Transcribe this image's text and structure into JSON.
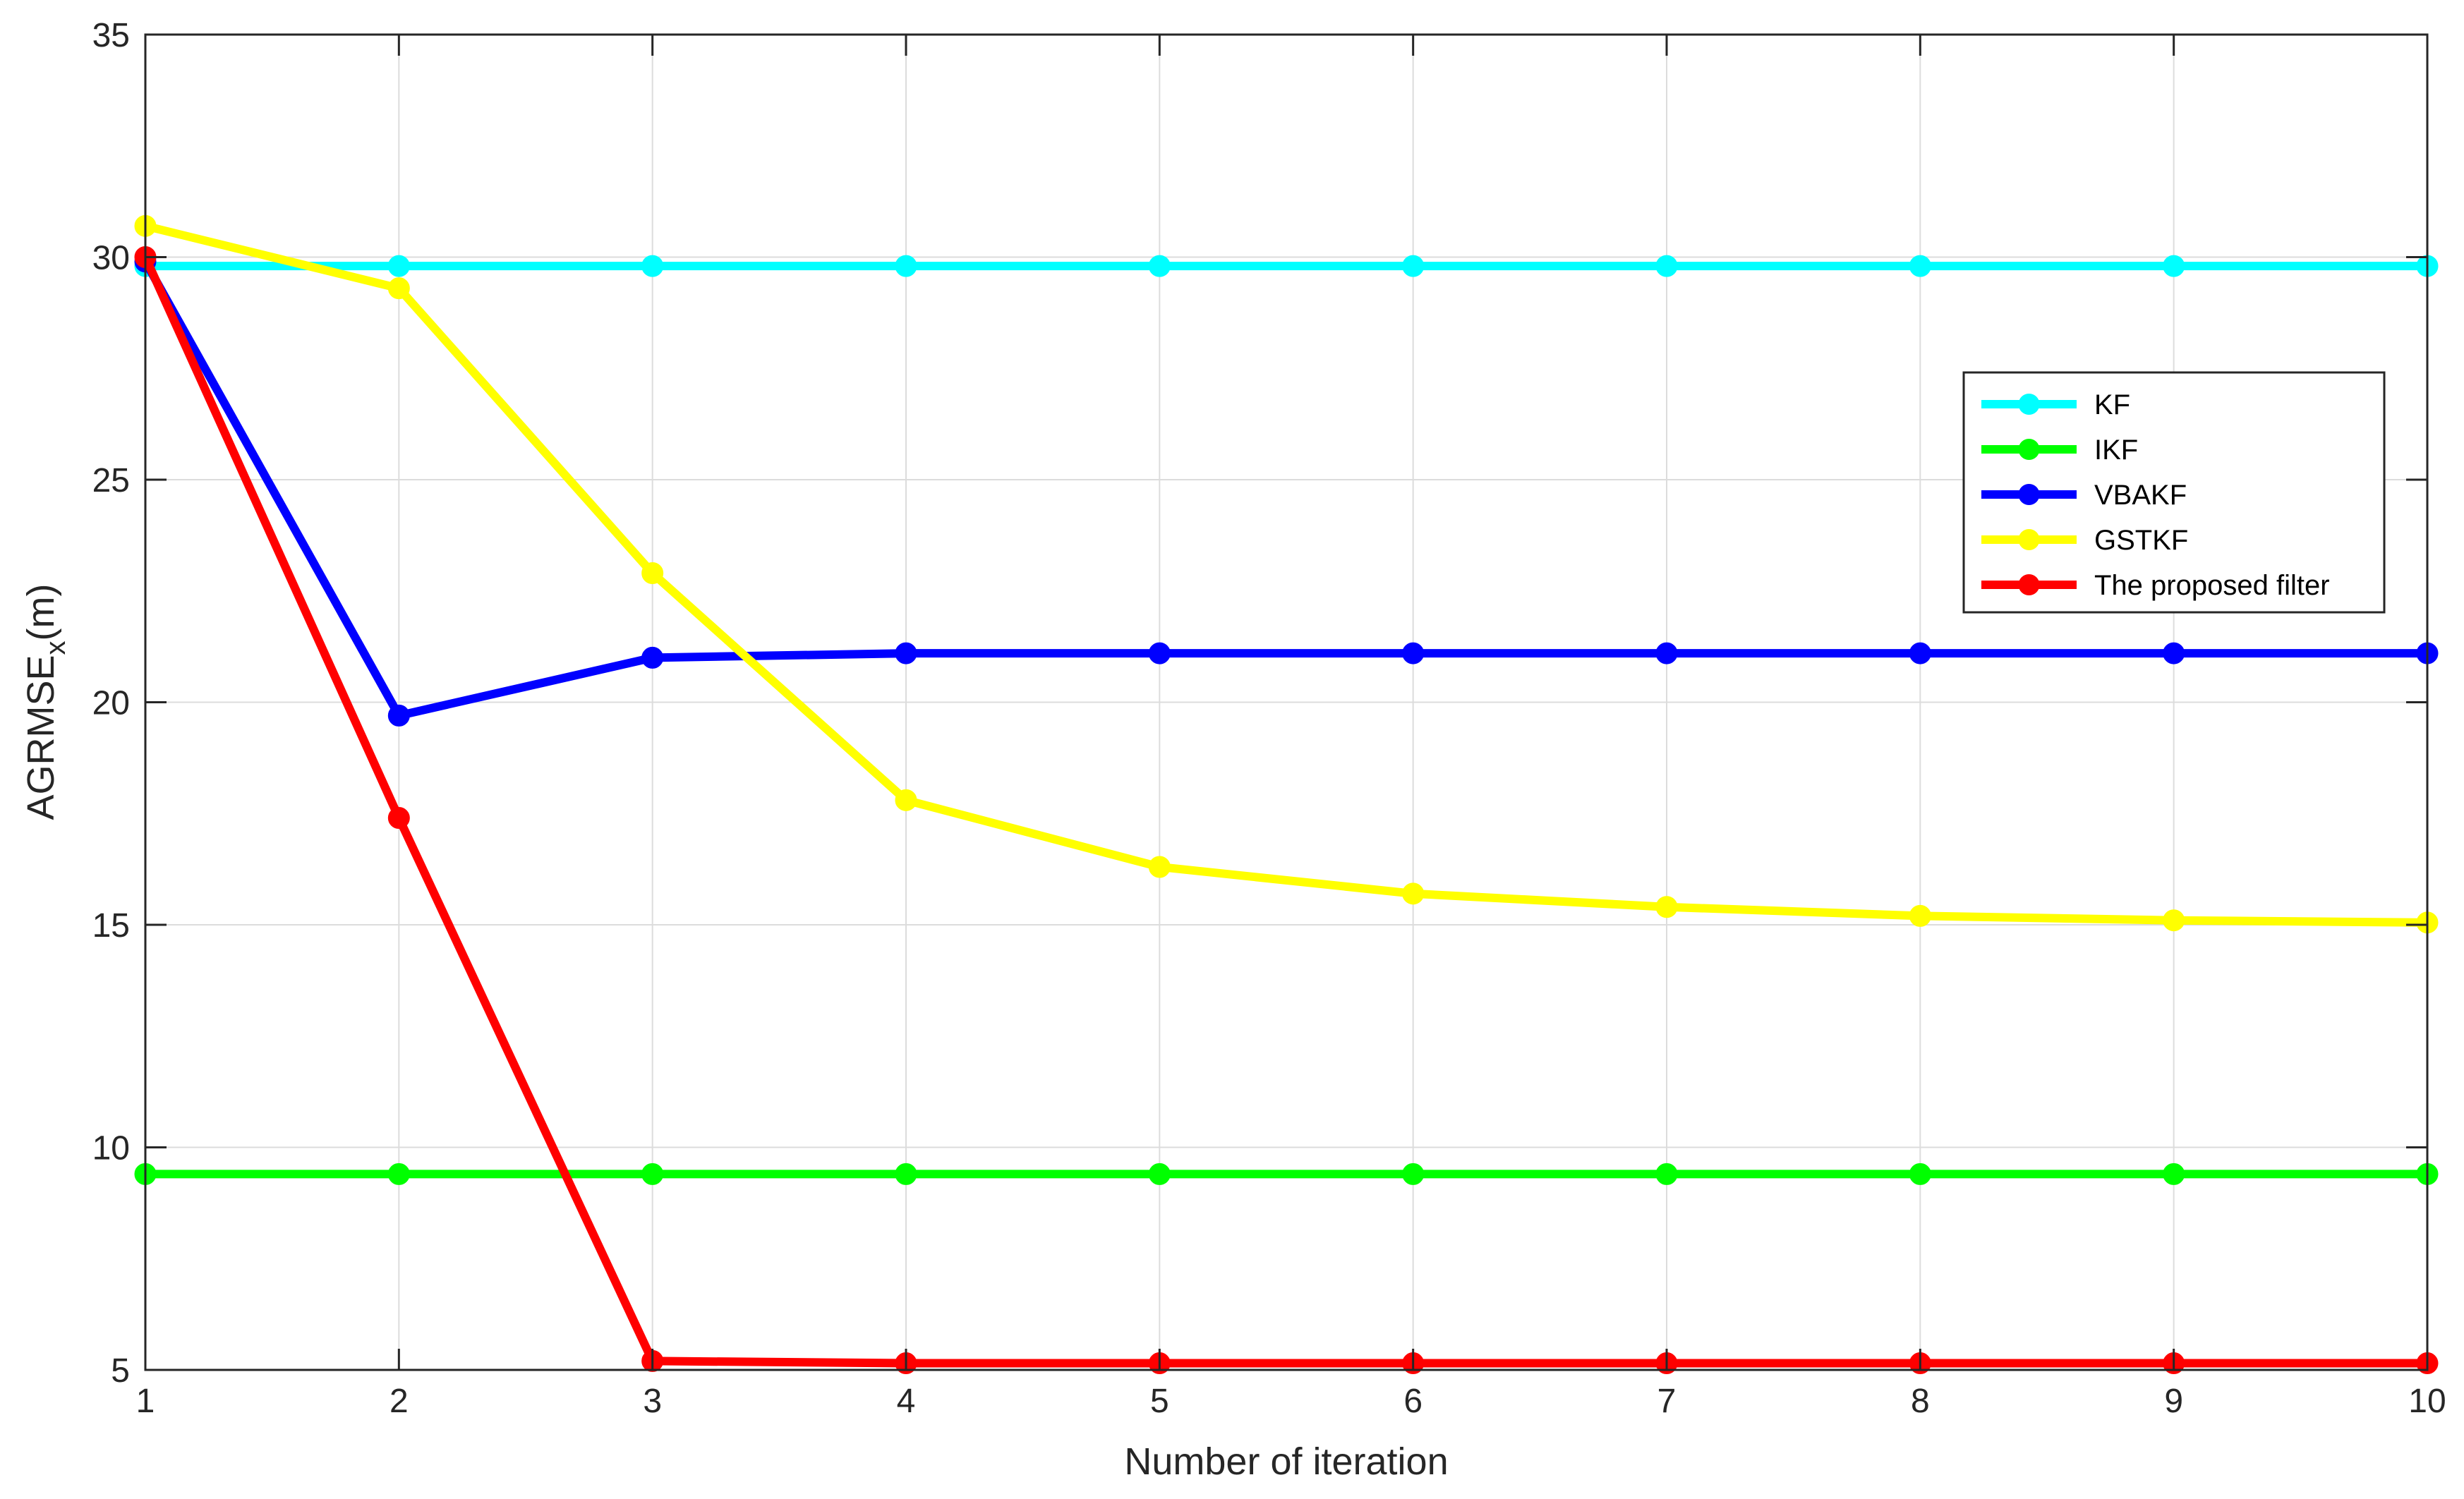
{
  "chart_data": {
    "type": "line",
    "xlabel": "Number of iteration",
    "ylabel": {
      "main": "AGRMSE",
      "sub": "x",
      "unit": "(m)"
    },
    "xlim": [
      1,
      10
    ],
    "ylim": [
      5,
      35
    ],
    "xticks": [
      1,
      2,
      3,
      4,
      5,
      6,
      7,
      8,
      9,
      10
    ],
    "yticks": [
      5,
      10,
      15,
      20,
      25,
      30,
      35
    ],
    "grid": true,
    "legend_position": "right",
    "x": [
      1,
      2,
      3,
      4,
      5,
      6,
      7,
      8,
      9,
      10
    ],
    "series": [
      {
        "name": "KF",
        "color": "#00ffff",
        "values": [
          29.8,
          29.8,
          29.8,
          29.8,
          29.8,
          29.8,
          29.8,
          29.8,
          29.8,
          29.8
        ]
      },
      {
        "name": "IKF",
        "color": "#00ff00",
        "values": [
          9.4,
          9.4,
          9.4,
          9.4,
          9.4,
          9.4,
          9.4,
          9.4,
          9.4,
          9.4
        ]
      },
      {
        "name": "VBAKF",
        "color": "#0000ff",
        "values": [
          29.9,
          19.7,
          21.0,
          21.1,
          21.1,
          21.1,
          21.1,
          21.1,
          21.1,
          21.1
        ]
      },
      {
        "name": "GSTKF",
        "color": "#ffff00",
        "values": [
          30.7,
          29.3,
          22.9,
          17.8,
          16.3,
          15.7,
          15.4,
          15.2,
          15.1,
          15.05
        ]
      },
      {
        "name": "The proposed filter",
        "color": "#ff0000",
        "values": [
          30.0,
          17.4,
          5.2,
          5.15,
          5.15,
          5.15,
          5.15,
          5.15,
          5.15,
          5.15
        ]
      }
    ]
  }
}
